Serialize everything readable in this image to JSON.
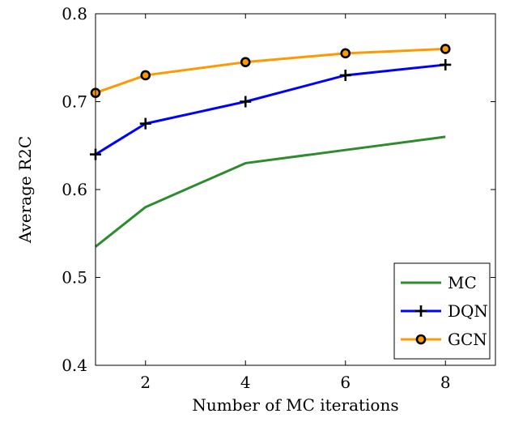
{
  "chart_data": {
    "type": "line",
    "title": "",
    "xlabel": "Number of MC iterations",
    "ylabel": "Average R2C",
    "xlim": [
      1,
      9
    ],
    "ylim": [
      0.4,
      0.8
    ],
    "x_ticks": [
      2,
      4,
      6,
      8
    ],
    "y_ticks": [
      0.4,
      0.5,
      0.6,
      0.7,
      0.8
    ],
    "x_tick_labels": [
      "2",
      "4",
      "6",
      "8"
    ],
    "y_tick_labels": [
      "0.4",
      "0.5",
      "0.6",
      "0.7",
      "0.8"
    ],
    "grid": false,
    "legend_position": "bottom-right",
    "series": [
      {
        "name": "MC",
        "color": "#2e8b2e",
        "marker": "none",
        "x": [
          1,
          2,
          4,
          6,
          8
        ],
        "y": [
          0.535,
          0.58,
          0.63,
          0.645,
          0.66
        ]
      },
      {
        "name": "DQN",
        "color": "#0000ff",
        "marker": "plus",
        "x": [
          1,
          2,
          4,
          6,
          8
        ],
        "y": [
          0.64,
          0.675,
          0.7,
          0.73,
          0.742
        ]
      },
      {
        "name": "GCN",
        "color": "#ff9900",
        "marker": "circle",
        "x": [
          1,
          2,
          4,
          6,
          8
        ],
        "y": [
          0.71,
          0.73,
          0.745,
          0.755,
          0.76
        ]
      }
    ]
  }
}
